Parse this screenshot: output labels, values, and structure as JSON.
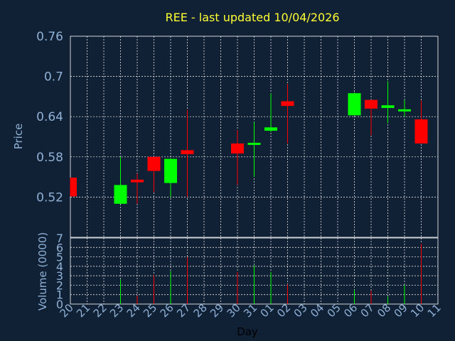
{
  "chart_data": {
    "type": "candlestick",
    "title": "REE - last updated 10/04/2026",
    "ylabel": "Price",
    "volume_label": "Volume (0000)",
    "xlabel": "Day",
    "price_axis": {
      "ylim": [
        0.46,
        0.76
      ],
      "ticks": [
        "0.76",
        "0.7",
        "0.64",
        "0.58",
        "0.52"
      ]
    },
    "volume_axis": {
      "ylim": [
        0,
        7
      ],
      "ticks": [
        "7",
        "6",
        "5",
        "4",
        "3",
        "2",
        "1",
        "0"
      ]
    },
    "day_labels": [
      "20",
      "21",
      "22",
      "23",
      "24",
      "25",
      "26",
      "27",
      "28",
      "29",
      "30",
      "31",
      "01",
      "02",
      "03",
      "04",
      "05",
      "06",
      "07",
      "08",
      "09",
      "10",
      "11"
    ],
    "grid": true,
    "colors": {
      "up": "#00ff00",
      "down": "#ff0000",
      "grid": "#ffffff",
      "axis": "#ffffff",
      "background": "#102035"
    },
    "candles": [
      {
        "day": "20",
        "open": 0.549,
        "high": 0.549,
        "low": 0.521,
        "close": 0.521,
        "volume": 0
      },
      {
        "day": "23",
        "open": 0.51,
        "high": 0.58,
        "low": 0.51,
        "close": 0.538,
        "volume": 2.6
      },
      {
        "day": "24",
        "open": 0.546,
        "high": 0.555,
        "low": 0.51,
        "close": 0.542,
        "volume": 0.9
      },
      {
        "day": "25",
        "open": 0.58,
        "high": 0.58,
        "low": 0.527,
        "close": 0.559,
        "volume": 3.1
      },
      {
        "day": "26",
        "open": 0.541,
        "high": 0.578,
        "low": 0.52,
        "close": 0.577,
        "volume": 3.5
      },
      {
        "day": "27",
        "open": 0.59,
        "high": 0.65,
        "low": 0.52,
        "close": 0.584,
        "volume": 5.0
      },
      {
        "day": "30",
        "open": 0.6,
        "high": 0.62,
        "low": 0.538,
        "close": 0.585,
        "volume": 3.4
      },
      {
        "day": "31",
        "open": 0.6,
        "high": 0.632,
        "low": 0.55,
        "close": 0.601,
        "volume": 4.1
      },
      {
        "day": "01",
        "open": 0.619,
        "high": 0.675,
        "low": 0.617,
        "close": 0.624,
        "volume": 3.4
      },
      {
        "day": "02",
        "open": 0.663,
        "high": 0.689,
        "low": 0.6,
        "close": 0.656,
        "volume": 2.1
      },
      {
        "day": "06",
        "open": 0.642,
        "high": 0.676,
        "low": 0.642,
        "close": 0.675,
        "volume": 1.5
      },
      {
        "day": "07",
        "open": 0.665,
        "high": 0.665,
        "low": 0.612,
        "close": 0.652,
        "volume": 1.4
      },
      {
        "day": "08",
        "open": 0.653,
        "high": 0.693,
        "low": 0.63,
        "close": 0.657,
        "volume": 0.8
      },
      {
        "day": "09",
        "open": 0.649,
        "high": 0.665,
        "low": 0.64,
        "close": 0.651,
        "volume": 2.0
      },
      {
        "day": "10",
        "open": 0.636,
        "high": 0.664,
        "low": 0.6,
        "close": 0.6,
        "volume": 6.4
      }
    ]
  }
}
